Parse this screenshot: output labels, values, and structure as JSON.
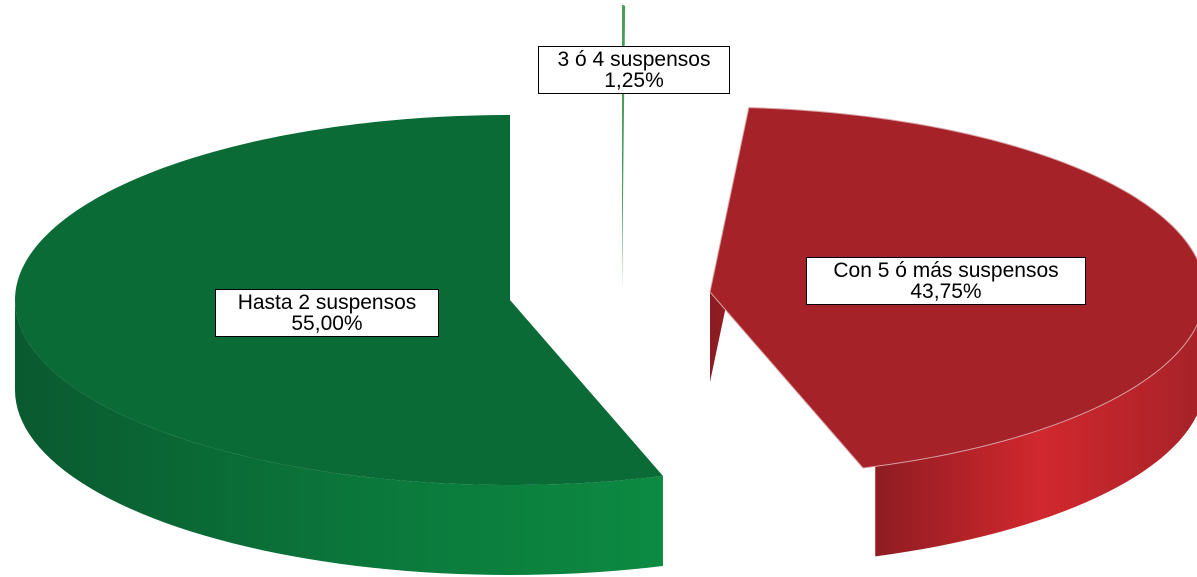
{
  "chart_data": {
    "type": "pie",
    "style": "3d-exploded",
    "title": "",
    "slices": [
      {
        "label": "Hasta 2 suspensos",
        "value": 55.0,
        "value_label": "55,00%",
        "color": "#0b6b37",
        "side_color": "#0c8a42"
      },
      {
        "label": "3 ó 4 suspensos",
        "value": 1.25,
        "value_label": "1,25%",
        "color": "#4a9e5c",
        "side_color": "#3d8a4e"
      },
      {
        "label": "Con 5 ó más suspensos",
        "value": 43.75,
        "value_label": "43,75%",
        "color": "#a52228",
        "side_color": "#c9272d"
      }
    ],
    "legend": "none"
  }
}
